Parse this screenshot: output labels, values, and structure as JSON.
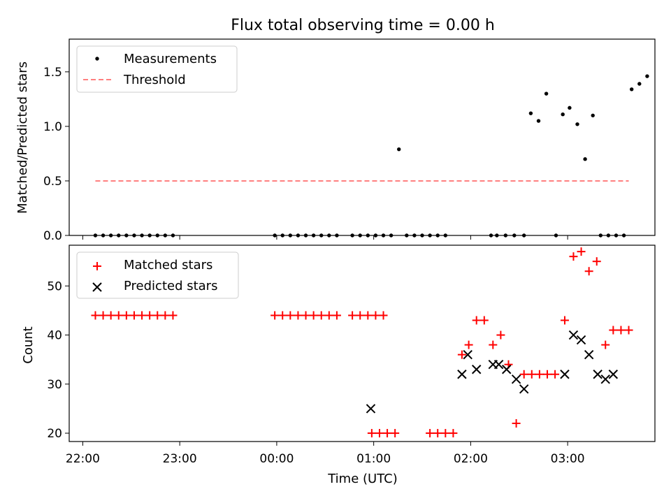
{
  "chart_data": {
    "type": "scatter",
    "title": "Flux total observing time = 0.00 h",
    "xlabel": "Time (UTC)",
    "x_unit": "hours since 22:00 UTC",
    "xlim": [
      -0.14,
      5.9
    ],
    "xticks": [
      {
        "value": 0,
        "label": "22:00"
      },
      {
        "value": 1,
        "label": "23:00"
      },
      {
        "value": 2,
        "label": "00:00"
      },
      {
        "value": 3,
        "label": "01:00"
      },
      {
        "value": 4,
        "label": "02:00"
      },
      {
        "value": 5,
        "label": "03:00"
      }
    ],
    "top": {
      "ylabel": "Matched/Predicted stars",
      "ylim": [
        0,
        1.8
      ],
      "yticks": [
        {
          "value": 0,
          "label": "0.0"
        },
        {
          "value": 0.5,
          "label": "0.5"
        },
        {
          "value": 1.0,
          "label": "1.0"
        },
        {
          "value": 1.5,
          "label": "1.5"
        }
      ],
      "legend": [
        "Measurements",
        "Threshold"
      ],
      "threshold": {
        "value": 0.5,
        "x_range": [
          0.13,
          5.63
        ],
        "color": "#ff7f7f"
      },
      "measurements": {
        "color": "#000000",
        "x": [
          0.13,
          0.21,
          0.29,
          0.37,
          0.45,
          0.53,
          0.61,
          0.69,
          0.77,
          0.85,
          0.93,
          1.98,
          2.06,
          2.14,
          2.22,
          2.3,
          2.38,
          2.46,
          2.54,
          2.62,
          2.78,
          2.86,
          2.94,
          3.02,
          3.1,
          3.18,
          3.26,
          3.34,
          3.42,
          3.5,
          3.58,
          3.66,
          3.74,
          4.21,
          4.27,
          4.36,
          4.45,
          4.55,
          4.62,
          4.7,
          4.78,
          4.88,
          4.95,
          5.02,
          5.1,
          5.18,
          5.26,
          5.34,
          5.42,
          5.5,
          5.58,
          5.66,
          5.74,
          5.82
        ],
        "y": [
          0,
          0,
          0,
          0,
          0,
          0,
          0,
          0,
          0,
          0,
          0,
          0,
          0,
          0,
          0,
          0,
          0,
          0,
          0,
          0,
          0,
          0,
          0,
          0,
          0,
          0,
          0.79,
          0,
          0,
          0,
          0,
          0,
          0,
          0,
          0,
          0,
          0,
          0,
          1.12,
          1.05,
          1.3,
          0,
          1.11,
          1.17,
          1.02,
          0.7,
          1.1,
          0,
          0,
          0,
          0,
          1.34,
          1.39,
          1.46
        ]
      }
    },
    "bottom": {
      "ylabel": "Count",
      "ylim": [
        18.3,
        58.3
      ],
      "yticks": [
        {
          "value": 20,
          "label": "20"
        },
        {
          "value": 30,
          "label": "30"
        },
        {
          "value": 40,
          "label": "40"
        },
        {
          "value": 50,
          "label": "50"
        }
      ],
      "legend": [
        "Matched stars",
        "Predicted stars"
      ],
      "matched": {
        "color": "#ff0000",
        "x": [
          0.13,
          0.21,
          0.29,
          0.37,
          0.45,
          0.53,
          0.61,
          0.69,
          0.77,
          0.85,
          0.93,
          1.98,
          2.06,
          2.14,
          2.22,
          2.3,
          2.38,
          2.46,
          2.54,
          2.62,
          2.78,
          2.86,
          2.94,
          3.02,
          3.1,
          2.98,
          3.06,
          3.14,
          3.22,
          3.58,
          3.66,
          3.74,
          3.82,
          3.91,
          3.98,
          4.06,
          4.14,
          4.23,
          4.31,
          4.39,
          4.47,
          4.55,
          4.63,
          4.71,
          4.79,
          4.87,
          4.97,
          5.06,
          5.14,
          5.22,
          5.3,
          5.39,
          5.47,
          5.55,
          5.63
        ],
        "y": [
          44,
          44,
          44,
          44,
          44,
          44,
          44,
          44,
          44,
          44,
          44,
          44,
          44,
          44,
          44,
          44,
          44,
          44,
          44,
          44,
          44,
          44,
          44,
          44,
          44,
          20,
          20,
          20,
          20,
          20,
          20,
          20,
          20,
          36,
          38,
          43,
          43,
          38,
          40,
          34,
          22,
          32,
          32,
          32,
          32,
          32,
          43,
          56,
          57,
          53,
          55,
          38,
          41,
          41,
          41
        ]
      },
      "predicted": {
        "color": "#000000",
        "x": [
          2.97,
          3.91,
          3.97,
          4.06,
          4.23,
          4.29,
          4.37,
          4.47,
          4.55,
          4.97,
          5.06,
          5.14,
          5.22,
          5.31,
          5.39,
          5.47
        ],
        "y": [
          25,
          32,
          36,
          33,
          34,
          34,
          33,
          31,
          29,
          32,
          40,
          39,
          36,
          32,
          31,
          32
        ]
      }
    }
  }
}
